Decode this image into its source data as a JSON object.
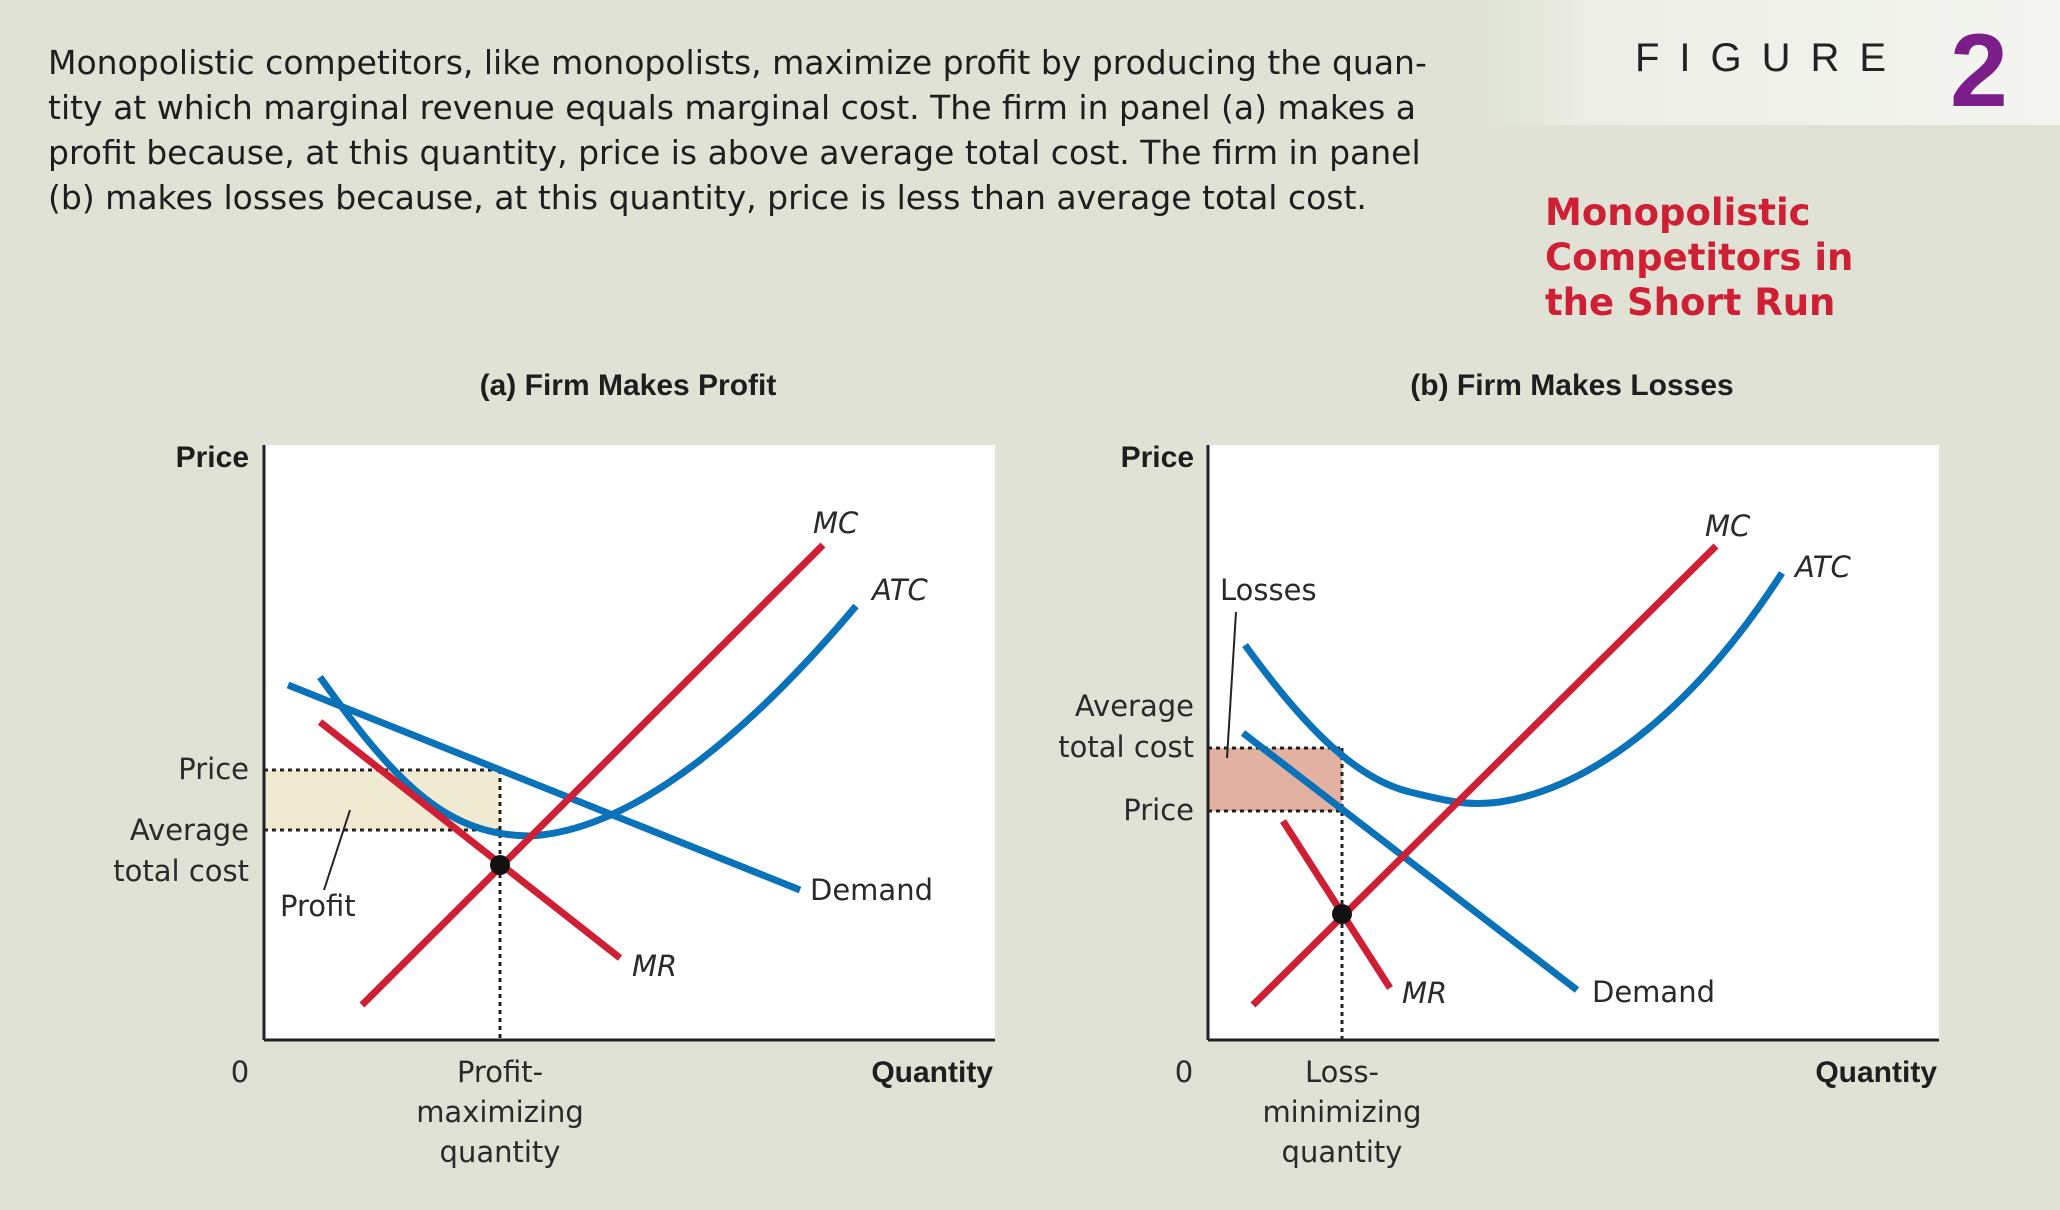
{
  "caption": "Monopolistic competitors, like monopolists, maximize profit by producing the quantity at which marginal revenue equals marginal cost. The firm in panel (a) makes a profit because, at this quantity, price is above average total cost. The firm in panel (b) makes losses because, at this quantity, price is less than average total cost.",
  "caption_lines": [
    "Monopolistic competitors, like monopolists, maximize profit by producing the quan-",
    "tity at which marginal revenue equals marginal cost. The firm in panel (a) makes a",
    "profit because, at this quantity, price is above average total cost. The firm in panel",
    "(b) makes losses because, at this quantity, price is less than average total cost."
  ],
  "figure": {
    "word": "FIGURE",
    "number": "2",
    "title_lines": [
      "Monopolistic",
      "Competitors in",
      "the Short Run"
    ]
  },
  "colors": {
    "background": "#dfe2d5",
    "plot_bg": "#ffffff",
    "red_curve": "#cf1f35",
    "blue_curve": "#0a72b8",
    "profit_fill": "#f1ead2",
    "loss_fill": "#e3b1a2",
    "figure_number": "#7b1e8a",
    "figure_title": "#cf1f35"
  },
  "panels": {
    "a": {
      "title": "(a) Firm Makes Profit",
      "y_axis_title": "Price",
      "x_axis_title": "Quantity",
      "origin": "0",
      "price_label": "Price",
      "atc_label_lines": [
        "Average",
        "total cost"
      ],
      "quantity_label_lines": [
        "Profit-",
        "maximizing",
        "quantity"
      ],
      "area_label": "Profit",
      "mc_label": "MC",
      "atc_label": "ATC",
      "mr_label": "MR",
      "demand_label": "Demand"
    },
    "b": {
      "title": "(b) Firm Makes Losses",
      "y_axis_title": "Price",
      "x_axis_title": "Quantity",
      "origin": "0",
      "price_label": "Price",
      "atc_label_lines": [
        "Average",
        "total cost"
      ],
      "quantity_label_lines": [
        "Loss-",
        "minimizing",
        "quantity"
      ],
      "area_label": "Losses",
      "mc_label": "MC",
      "atc_label": "ATC",
      "mr_label": "MR",
      "demand_label": "Demand"
    }
  }
}
